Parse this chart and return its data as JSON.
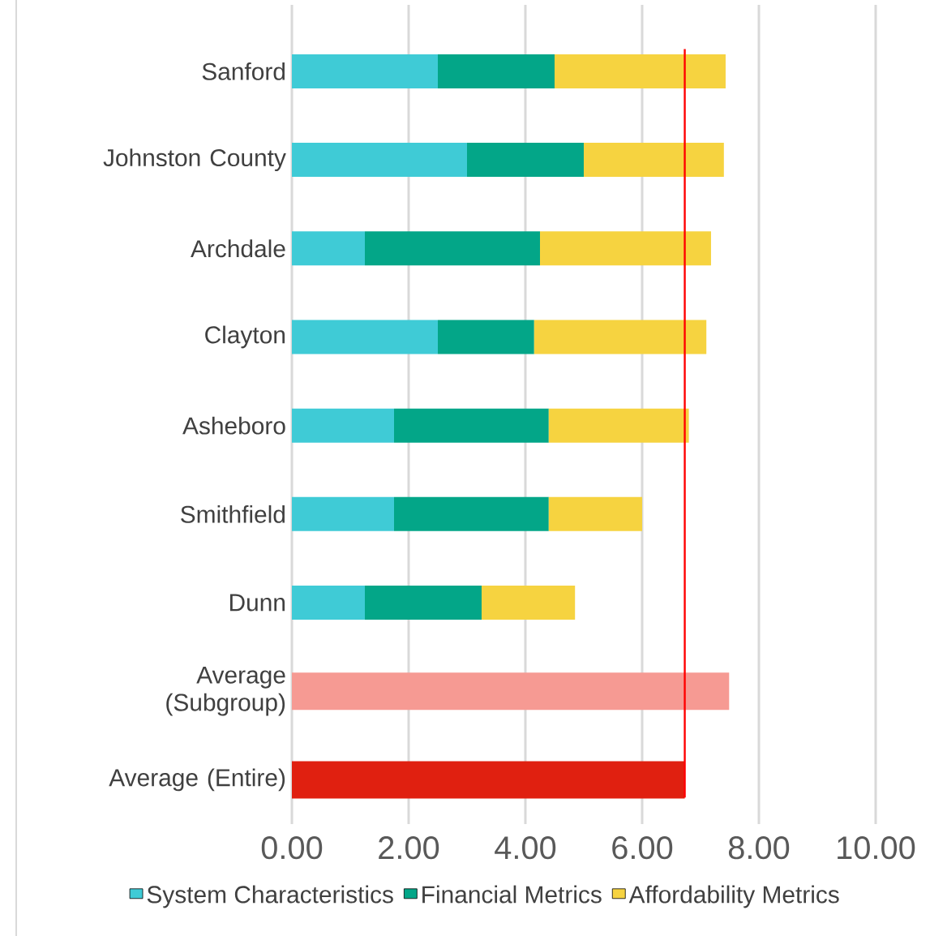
{
  "chart_data": {
    "type": "bar",
    "orientation": "horizontal",
    "stacked": true,
    "categories": [
      "Sanford",
      "Johnston County",
      "Archdale",
      "Clayton",
      "Asheboro",
      "Smithfield",
      "Dunn",
      "Average (Subgroup)",
      "Average (Entire)"
    ],
    "series": [
      {
        "name": "System Characteristics",
        "color": "#3fcbd6",
        "values": [
          2.5,
          3.0,
          1.25,
          2.5,
          1.75,
          1.75,
          1.25,
          null,
          null
        ]
      },
      {
        "name": "Financial Metrics",
        "color": "#03a688",
        "values": [
          2.0,
          2.0,
          3.0,
          1.65,
          2.65,
          2.65,
          2.0,
          null,
          null
        ]
      },
      {
        "name": "Affordability Metrics",
        "color": "#f6d340",
        "values": [
          2.93,
          2.4,
          2.93,
          2.95,
          2.4,
          1.6,
          1.6,
          null,
          null
        ]
      },
      {
        "colors": [
          null,
          null,
          null,
          null,
          null,
          null,
          null,
          "#f69a93",
          "#e02010"
        ],
        "values": [
          null,
          null,
          null,
          null,
          null,
          null,
          null,
          7.49,
          6.73
        ]
      }
    ],
    "xlim": [
      0,
      10
    ],
    "xticks": [
      {
        "value": 0,
        "label": "0.00"
      },
      {
        "value": 2,
        "label": "2.00"
      },
      {
        "value": 4,
        "label": "4.00"
      },
      {
        "value": 6,
        "label": "6.00"
      },
      {
        "value": 8,
        "label": "8.00"
      },
      {
        "value": 10,
        "label": "10.00"
      }
    ],
    "ref_lines": [
      {
        "axis": "x",
        "value": 6.73,
        "color": "#ff0000"
      }
    ],
    "grid": "x",
    "legend": "bottom"
  }
}
